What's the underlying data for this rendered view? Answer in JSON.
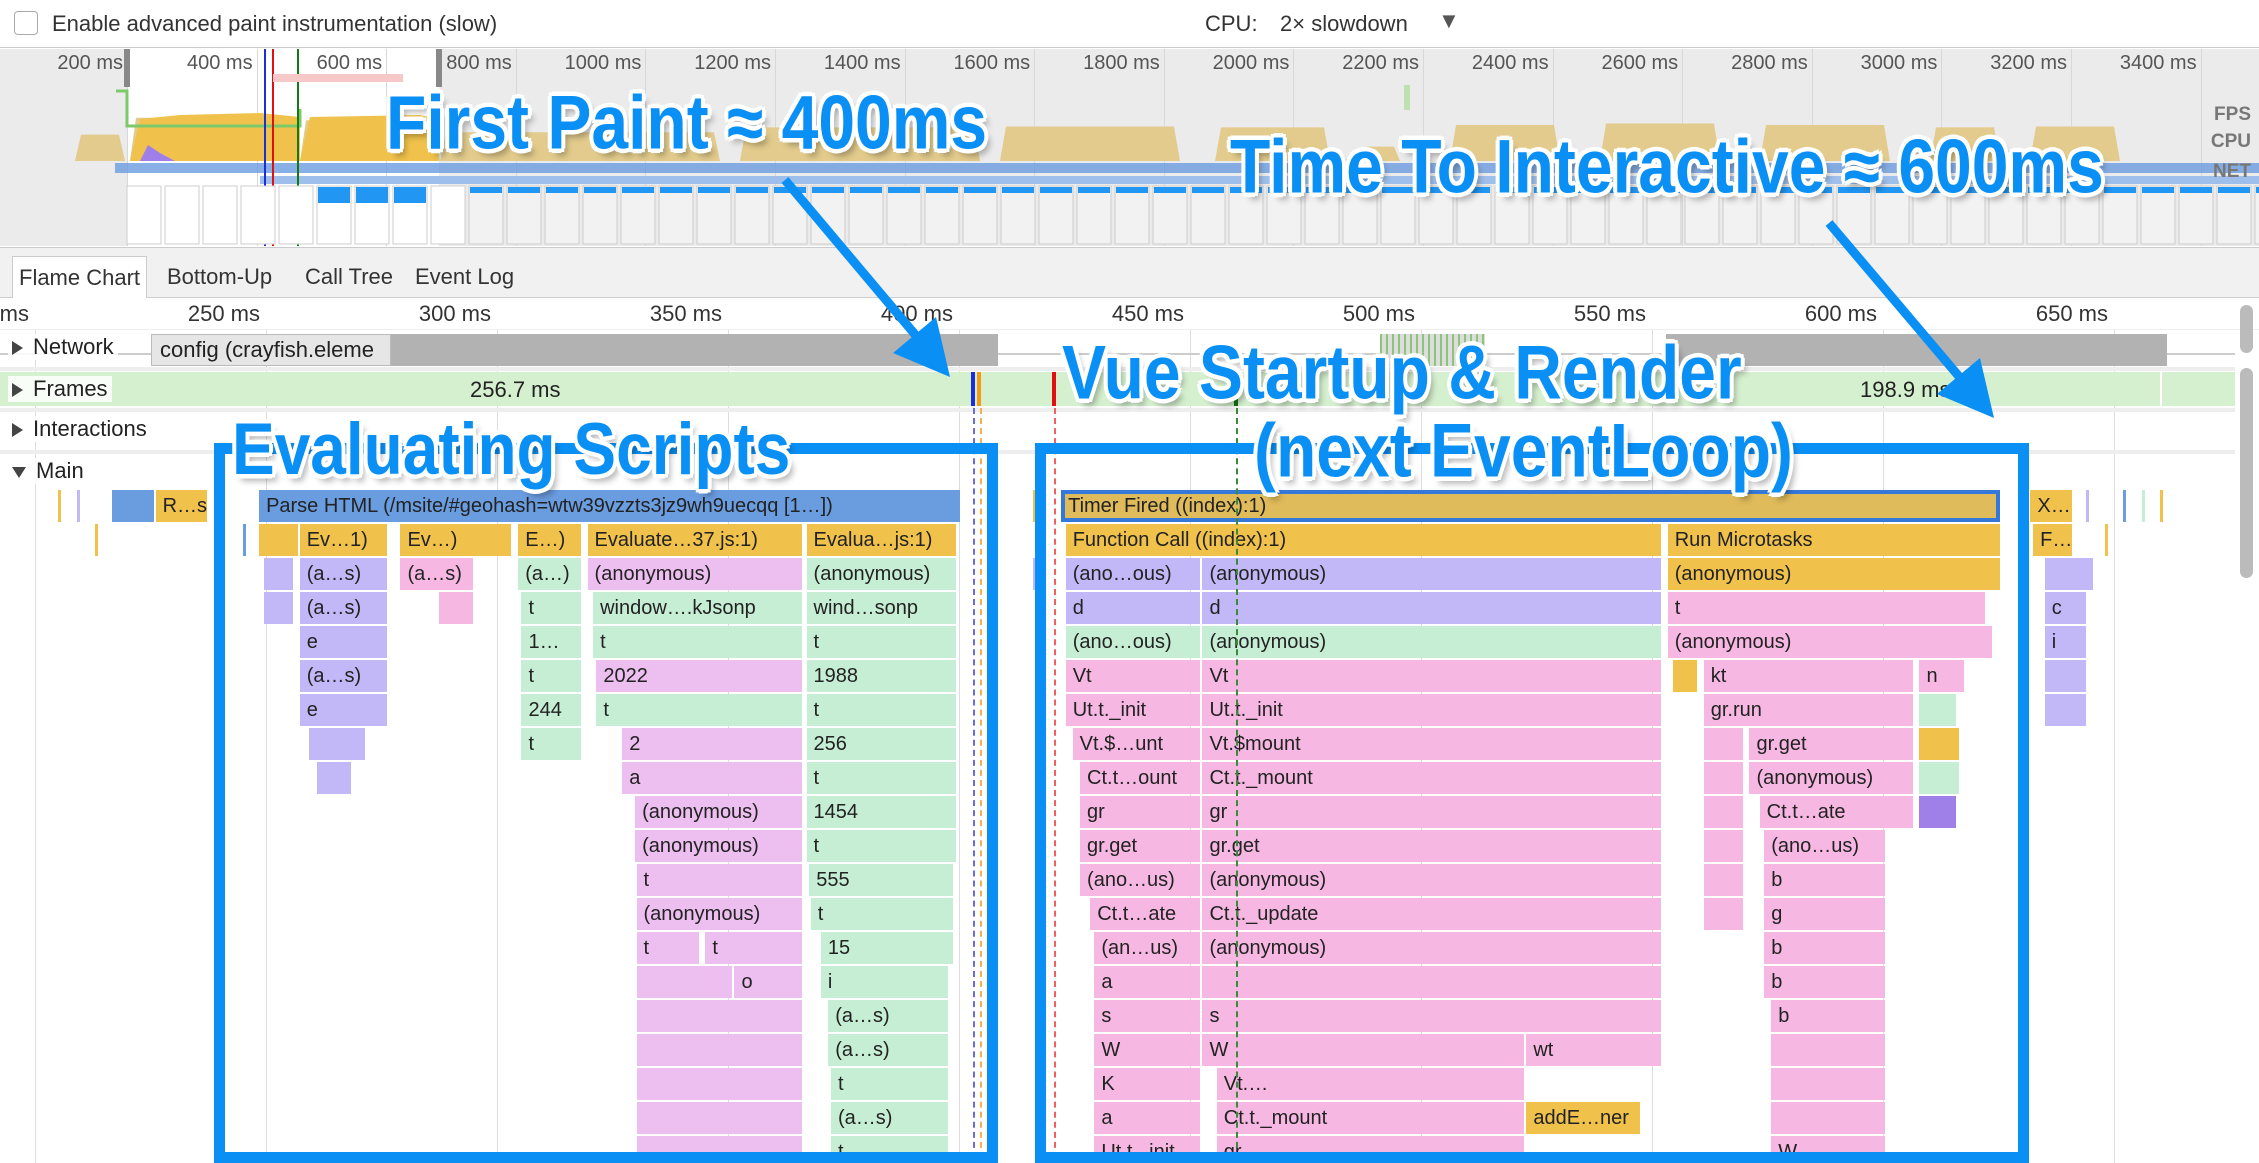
{
  "toolbar": {
    "paint_checkbox_label": "Enable advanced paint instrumentation (slow)",
    "paint_checked": false,
    "cpu_label": "CPU:",
    "cpu_value": "2× slowdown"
  },
  "overview": {
    "ticks": [
      "200 ms",
      "400 ms",
      "600 ms",
      "800 ms",
      "1000 ms",
      "1200 ms",
      "1400 ms",
      "1600 ms",
      "1800 ms",
      "2000 ms",
      "2200 ms",
      "2400 ms",
      "2600 ms",
      "2800 ms",
      "3000 ms",
      "3200 ms",
      "3400 ms"
    ],
    "side_labels": {
      "fps": "FPS",
      "cpu": "CPU",
      "net": "NET"
    }
  },
  "tabs": [
    {
      "label": "Flame Chart",
      "selected": true
    },
    {
      "label": "Bottom-Up"
    },
    {
      "label": "Call Tree"
    },
    {
      "label": "Event Log"
    }
  ],
  "ruler": {
    "ticks": [
      "ms",
      "250 ms",
      "300 ms",
      "350 ms",
      "400 ms",
      "450 ms",
      "500 ms",
      "550 ms",
      "600 ms",
      "650 ms"
    ]
  },
  "tracks": {
    "network": "Network",
    "frames": "Frames",
    "interactions": "Interactions",
    "main": "Main",
    "network_request": "config (crayfish.eleme",
    "frame_durations": [
      "256.7 ms",
      "198.9 ms"
    ]
  },
  "colors": {
    "Y": "#f0c24b",
    "T": "#dfbb5b",
    "B": "#6a9ce0",
    "P": "#c3b8f7",
    "K": "#f6b8e3",
    "M": "#edbff0",
    "G": "#c6eed5",
    "L": "#d7f7b8",
    "D": "#9f7fe8",
    "annotation": "#0a8ff5"
  },
  "flame": [
    {
      "d": 0,
      "s": 216.7,
      "e": 226.1,
      "c": "B",
      "t": ""
    },
    {
      "d": 0,
      "s": 226.1,
      "e": 237.6,
      "c": "Y",
      "t": "R…s"
    },
    {
      "d": 0,
      "s": 248.5,
      "e": 400.6,
      "c": "B",
      "t": "Parse HTML (/msite/#geohash=wtw39vzzts3jz9wh9uecqq [1…])"
    },
    {
      "d": 0,
      "s": 422.1,
      "e": 625.7,
      "c": "T",
      "t": "Timer Fired ((index):1)",
      "selected": true
    },
    {
      "d": 0,
      "s": 631.9,
      "e": 641.3,
      "c": "Y",
      "t": "X…"
    },
    {
      "d": 1,
      "s": 248.5,
      "e": 257.3,
      "c": "Y",
      "t": ""
    },
    {
      "d": 1,
      "s": 257.3,
      "e": 276.6,
      "c": "Y",
      "t": "Ev…1)"
    },
    {
      "d": 1,
      "s": 279.1,
      "e": 303.4,
      "c": "Y",
      "t": "Ev…)"
    },
    {
      "d": 1,
      "s": 304.6,
      "e": 318.7,
      "c": "Y",
      "t": "E…)"
    },
    {
      "d": 1,
      "s": 319.6,
      "e": 366.4,
      "c": "Y",
      "t": "Evaluate…37.js:1)"
    },
    {
      "d": 1,
      "s": 367,
      "e": 399.7,
      "c": "Y",
      "t": "Evalua…js:1)"
    },
    {
      "d": 1,
      "s": 423.1,
      "e": 552.4,
      "c": "Y",
      "t": "Function Call ((index):1)"
    },
    {
      "d": 1,
      "s": 553.4,
      "e": 625.7,
      "c": "Y",
      "t": "Run Microtasks"
    },
    {
      "d": 1,
      "s": 632.5,
      "e": 641.3,
      "c": "Y",
      "t": "F…"
    },
    {
      "d": 2,
      "s": 249.5,
      "e": 256.3,
      "c": "P",
      "t": ""
    },
    {
      "d": 2,
      "s": 257.3,
      "e": 276.6,
      "c": "P",
      "t": "(a…s)"
    },
    {
      "d": 2,
      "s": 279.1,
      "e": 295.3,
      "c": "K",
      "t": "(a…s)"
    },
    {
      "d": 2,
      "s": 304.6,
      "e": 318.7,
      "c": "G",
      "t": "(a…)"
    },
    {
      "d": 2,
      "s": 319.6,
      "e": 366.4,
      "c": "M",
      "t": "(anonymous)"
    },
    {
      "d": 2,
      "s": 367,
      "e": 399.7,
      "c": "G",
      "t": "(anonymous)"
    },
    {
      "d": 2,
      "s": 423.1,
      "e": 452.7,
      "c": "P",
      "t": "(ano…ous)"
    },
    {
      "d": 2,
      "s": 452.7,
      "e": 552.4,
      "c": "P",
      "t": "(anonymous)"
    },
    {
      "d": 2,
      "s": 553.4,
      "e": 625.7,
      "c": "Y",
      "t": "(anonymous)"
    },
    {
      "d": 2,
      "s": 635,
      "e": 645.9,
      "c": "P",
      "t": ""
    },
    {
      "d": 3,
      "s": 249.5,
      "e": 256.3,
      "c": "P",
      "t": ""
    },
    {
      "d": 3,
      "s": 257.3,
      "e": 276.6,
      "c": "P",
      "t": "(a…s)"
    },
    {
      "d": 3,
      "s": 287.5,
      "e": 295.3,
      "c": "K",
      "t": ""
    },
    {
      "d": 3,
      "s": 305.3,
      "e": 318.7,
      "c": "G",
      "t": "t"
    },
    {
      "d": 3,
      "s": 320.8,
      "e": 366.4,
      "c": "G",
      "t": "window….kJsonp"
    },
    {
      "d": 3,
      "s": 367,
      "e": 399.7,
      "c": "G",
      "t": "wind…sonp"
    },
    {
      "d": 3,
      "s": 423.1,
      "e": 452.7,
      "c": "P",
      "t": "d"
    },
    {
      "d": 3,
      "s": 452.7,
      "e": 552.4,
      "c": "P",
      "t": "d"
    },
    {
      "d": 3,
      "s": 553.4,
      "e": 622.6,
      "c": "K",
      "t": "t"
    },
    {
      "d": 3,
      "s": 635,
      "e": 644.4,
      "c": "P",
      "t": "c"
    },
    {
      "d": 4,
      "s": 257.3,
      "e": 276.6,
      "c": "P",
      "t": "e"
    },
    {
      "d": 4,
      "s": 305.3,
      "e": 318.7,
      "c": "G",
      "t": "1…"
    },
    {
      "d": 4,
      "s": 320.8,
      "e": 366.4,
      "c": "G",
      "t": "t"
    },
    {
      "d": 4,
      "s": 367,
      "e": 399.7,
      "c": "G",
      "t": "t"
    },
    {
      "d": 4,
      "s": 423.1,
      "e": 452.7,
      "c": "G",
      "t": "(ano…ous)"
    },
    {
      "d": 4,
      "s": 452.7,
      "e": 552.4,
      "c": "G",
      "t": "(anonymous)"
    },
    {
      "d": 4,
      "s": 553.4,
      "e": 624.1,
      "c": "K",
      "t": "(anonymous)"
    },
    {
      "d": 4,
      "s": 635,
      "e": 644.4,
      "c": "P",
      "t": "i"
    },
    {
      "d": 5,
      "s": 257.3,
      "e": 276.6,
      "c": "P",
      "t": "(a…s)"
    },
    {
      "d": 5,
      "s": 305.3,
      "e": 318.7,
      "c": "G",
      "t": "t"
    },
    {
      "d": 5,
      "s": 321.5,
      "e": 366.4,
      "c": "M",
      "t": "2022"
    },
    {
      "d": 5,
      "s": 367,
      "e": 399.7,
      "c": "G",
      "t": "1988"
    },
    {
      "d": 5,
      "s": 423.1,
      "e": 452.7,
      "c": "K",
      "t": "Vt"
    },
    {
      "d": 5,
      "s": 452.7,
      "e": 552.4,
      "c": "K",
      "t": "Vt"
    },
    {
      "d": 5,
      "s": 554.6,
      "e": 560.2,
      "c": "Y",
      "t": ""
    },
    {
      "d": 5,
      "s": 561.2,
      "e": 607,
      "c": "K",
      "t": "kt"
    },
    {
      "d": 5,
      "s": 607.9,
      "e": 617.9,
      "c": "K",
      "t": "n"
    },
    {
      "d": 5,
      "s": 635,
      "e": 644.4,
      "c": "P",
      "t": ""
    },
    {
      "d": 6,
      "s": 257.3,
      "e": 276.6,
      "c": "P",
      "t": "e"
    },
    {
      "d": 6,
      "s": 305.3,
      "e": 318.7,
      "c": "G",
      "t": "244"
    },
    {
      "d": 6,
      "s": 321.5,
      "e": 366.4,
      "c": "G",
      "t": "t"
    },
    {
      "d": 6,
      "s": 367,
      "e": 399.7,
      "c": "G",
      "t": "t"
    },
    {
      "d": 6,
      "s": 423.1,
      "e": 452.7,
      "c": "K",
      "t": "Ut.t._init"
    },
    {
      "d": 6,
      "s": 452.7,
      "e": 552.4,
      "c": "K",
      "t": "Ut.t._init"
    },
    {
      "d": 6,
      "s": 561.2,
      "e": 607,
      "c": "K",
      "t": "gr.run"
    },
    {
      "d": 6,
      "s": 607.9,
      "e": 616.3,
      "c": "G",
      "t": ""
    },
    {
      "d": 6,
      "s": 635,
      "e": 644.4,
      "c": "P",
      "t": ""
    },
    {
      "d": 7,
      "s": 259.4,
      "e": 271.9,
      "c": "P",
      "t": ""
    },
    {
      "d": 7,
      "s": 305.3,
      "e": 318.7,
      "c": "G",
      "t": "t"
    },
    {
      "d": 7,
      "s": 327.1,
      "e": 366.4,
      "c": "M",
      "t": "2"
    },
    {
      "d": 7,
      "s": 367,
      "e": 399.7,
      "c": "G",
      "t": "256"
    },
    {
      "d": 7,
      "s": 424.6,
      "e": 452.7,
      "c": "K",
      "t": "Vt.$…unt"
    },
    {
      "d": 7,
      "s": 452.7,
      "e": 552.4,
      "c": "K",
      "t": "Vt.$mount"
    },
    {
      "d": 7,
      "s": 561.2,
      "e": 570.2,
      "c": "K",
      "t": ""
    },
    {
      "d": 7,
      "s": 571.1,
      "e": 607,
      "c": "K",
      "t": "gr.get"
    },
    {
      "d": 7,
      "s": 607.9,
      "e": 616.9,
      "c": "Y",
      "t": ""
    },
    {
      "d": 8,
      "s": 261,
      "e": 268.8,
      "c": "P",
      "t": ""
    },
    {
      "d": 8,
      "s": 327.1,
      "e": 366.4,
      "c": "M",
      "t": "a"
    },
    {
      "d": 8,
      "s": 367,
      "e": 399.7,
      "c": "G",
      "t": "t"
    },
    {
      "d": 8,
      "s": 426.2,
      "e": 452.7,
      "c": "K",
      "t": "Ct.t…ount"
    },
    {
      "d": 8,
      "s": 452.7,
      "e": 552.4,
      "c": "K",
      "t": "Ct.t._mount"
    },
    {
      "d": 8,
      "s": 561.2,
      "e": 570.2,
      "c": "K",
      "t": ""
    },
    {
      "d": 8,
      "s": 571.1,
      "e": 607,
      "c": "K",
      "t": "(anonymous)"
    },
    {
      "d": 8,
      "s": 607.9,
      "e": 616.9,
      "c": "G",
      "t": ""
    },
    {
      "d": 9,
      "s": 329.9,
      "e": 366.4,
      "c": "M",
      "t": "(anonymous)"
    },
    {
      "d": 9,
      "s": 367,
      "e": 399.7,
      "c": "G",
      "t": "1454"
    },
    {
      "d": 9,
      "s": 426.2,
      "e": 452.7,
      "c": "K",
      "t": "gr"
    },
    {
      "d": 9,
      "s": 452.7,
      "e": 552.4,
      "c": "K",
      "t": "gr"
    },
    {
      "d": 9,
      "s": 561.2,
      "e": 570.2,
      "c": "K",
      "t": ""
    },
    {
      "d": 9,
      "s": 573.3,
      "e": 607,
      "c": "K",
      "t": "Ct.t…ate"
    },
    {
      "d": 9,
      "s": 607.9,
      "e": 616.3,
      "c": "D",
      "t": ""
    },
    {
      "d": 10,
      "s": 329.9,
      "e": 366.4,
      "c": "M",
      "t": "(anonymous)"
    },
    {
      "d": 10,
      "s": 367,
      "e": 399.7,
      "c": "G",
      "t": "t"
    },
    {
      "d": 10,
      "s": 426.2,
      "e": 452.7,
      "c": "K",
      "t": "gr.get"
    },
    {
      "d": 10,
      "s": 452.7,
      "e": 552.4,
      "c": "K",
      "t": "gr.get"
    },
    {
      "d": 10,
      "s": 561.2,
      "e": 570.2,
      "c": "K",
      "t": ""
    },
    {
      "d": 10,
      "s": 574.3,
      "e": 600.8,
      "c": "K",
      "t": "(ano…us)"
    },
    {
      "d": 11,
      "s": 330.2,
      "e": 366.4,
      "c": "M",
      "t": "t"
    },
    {
      "d": 11,
      "s": 367.6,
      "e": 399.1,
      "c": "G",
      "t": "555"
    },
    {
      "d": 11,
      "s": 426.2,
      "e": 452.7,
      "c": "K",
      "t": "(ano…us)"
    },
    {
      "d": 11,
      "s": 452.7,
      "e": 552.4,
      "c": "K",
      "t": "(anonymous)"
    },
    {
      "d": 11,
      "s": 561.2,
      "e": 570.2,
      "c": "K",
      "t": ""
    },
    {
      "d": 11,
      "s": 574.3,
      "e": 600.8,
      "c": "K",
      "t": "b"
    },
    {
      "d": 12,
      "s": 330.2,
      "e": 366.4,
      "c": "M",
      "t": "(anonymous)"
    },
    {
      "d": 12,
      "s": 367.9,
      "e": 399.1,
      "c": "G",
      "t": "t"
    },
    {
      "d": 12,
      "s": 428.4,
      "e": 452.7,
      "c": "K",
      "t": "Ct.t…ate"
    },
    {
      "d": 12,
      "s": 452.7,
      "e": 552.4,
      "c": "K",
      "t": "Ct.t._update"
    },
    {
      "d": 12,
      "s": 561.2,
      "e": 570.2,
      "c": "K",
      "t": ""
    },
    {
      "d": 12,
      "s": 574.3,
      "e": 600.8,
      "c": "K",
      "t": "g"
    },
    {
      "d": 13,
      "s": 330.2,
      "e": 344.2,
      "c": "M",
      "t": "t"
    },
    {
      "d": 13,
      "s": 345.1,
      "e": 366.4,
      "c": "M",
      "t": "t"
    },
    {
      "d": 13,
      "s": 370.1,
      "e": 399.1,
      "c": "G",
      "t": "15"
    },
    {
      "d": 13,
      "s": 429.3,
      "e": 452.7,
      "c": "K",
      "t": "(an…us)"
    },
    {
      "d": 13,
      "s": 452.7,
      "e": 552.4,
      "c": "K",
      "t": "(anonymous)"
    },
    {
      "d": 13,
      "s": 574.3,
      "e": 600.8,
      "c": "K",
      "t": "b"
    },
    {
      "d": 14,
      "s": 330.2,
      "e": 351.4,
      "c": "M",
      "t": ""
    },
    {
      "d": 14,
      "s": 351.4,
      "e": 366.4,
      "c": "M",
      "t": "o"
    },
    {
      "d": 14,
      "s": 370.1,
      "e": 398.1,
      "c": "G",
      "t": "i"
    },
    {
      "d": 14,
      "s": 429.3,
      "e": 452.7,
      "c": "K",
      "t": "a"
    },
    {
      "d": 14,
      "s": 452.7,
      "e": 552.4,
      "c": "K",
      "t": ""
    },
    {
      "d": 14,
      "s": 574.3,
      "e": 600.8,
      "c": "K",
      "t": "b"
    },
    {
      "d": 15,
      "s": 330.2,
      "e": 366.4,
      "c": "M",
      "t": ""
    },
    {
      "d": 15,
      "s": 371.7,
      "e": 398.1,
      "c": "G",
      "t": "(a…s)"
    },
    {
      "d": 15,
      "s": 429.3,
      "e": 452.7,
      "c": "K",
      "t": "s"
    },
    {
      "d": 15,
      "s": 452.7,
      "e": 552.4,
      "c": "K",
      "t": "s"
    },
    {
      "d": 15,
      "s": 575.8,
      "e": 600.8,
      "c": "K",
      "t": "b"
    },
    {
      "d": 16,
      "s": 330.2,
      "e": 366.4,
      "c": "M",
      "t": ""
    },
    {
      "d": 16,
      "s": 371.7,
      "e": 398.1,
      "c": "G",
      "t": "(a…s)"
    },
    {
      "d": 16,
      "s": 429.3,
      "e": 452.7,
      "c": "K",
      "t": "W"
    },
    {
      "d": 16,
      "s": 452.7,
      "e": 522.8,
      "c": "K",
      "t": "W"
    },
    {
      "d": 16,
      "s": 522.8,
      "e": 552.4,
      "c": "K",
      "t": "wt"
    },
    {
      "d": 16,
      "s": 575.8,
      "e": 600.8,
      "c": "K",
      "t": ""
    },
    {
      "d": 17,
      "s": 330.2,
      "e": 366.4,
      "c": "M",
      "t": ""
    },
    {
      "d": 17,
      "s": 372.3,
      "e": 398.1,
      "c": "G",
      "t": "t"
    },
    {
      "d": 17,
      "s": 429.3,
      "e": 452.7,
      "c": "K",
      "t": "K"
    },
    {
      "d": 17,
      "s": 455.8,
      "e": 522.8,
      "c": "K",
      "t": "Vt.…"
    },
    {
      "d": 17,
      "s": 575.8,
      "e": 600.8,
      "c": "K",
      "t": ""
    },
    {
      "d": 18,
      "s": 330.2,
      "e": 366.4,
      "c": "M",
      "t": ""
    },
    {
      "d": 18,
      "s": 372.3,
      "e": 398.1,
      "c": "G",
      "t": "(a…s)"
    },
    {
      "d": 18,
      "s": 429.3,
      "e": 452.7,
      "c": "K",
      "t": "a"
    },
    {
      "d": 18,
      "s": 455.8,
      "e": 522.8,
      "c": "K",
      "t": "Ct.t._mount"
    },
    {
      "d": 18,
      "s": 522.8,
      "e": 547.8,
      "c": "Y",
      "t": "addE…ner"
    },
    {
      "d": 18,
      "s": 575.8,
      "e": 600.8,
      "c": "K",
      "t": ""
    },
    {
      "d": 19,
      "s": 330.2,
      "e": 366.4,
      "c": "M",
      "t": ""
    },
    {
      "d": 19,
      "s": 372.3,
      "e": 398.1,
      "c": "G",
      "t": "t"
    },
    {
      "d": 19,
      "s": 429.3,
      "e": 452.7,
      "c": "K",
      "t": "Ut.t._init"
    },
    {
      "d": 19,
      "s": 455.8,
      "e": 522.8,
      "c": "K",
      "t": "gr"
    },
    {
      "d": 19,
      "s": 575.8,
      "e": 600.8,
      "c": "K",
      "t": "W"
    }
  ],
  "annotations": {
    "first_paint": "First Paint ≈ 400ms",
    "tti": "Time To Interactive ≈ 600ms",
    "evaluating": "Evaluating Scripts",
    "vue_line1": "Vue Startup & Render",
    "vue_line2": "(next EventLoop)"
  }
}
